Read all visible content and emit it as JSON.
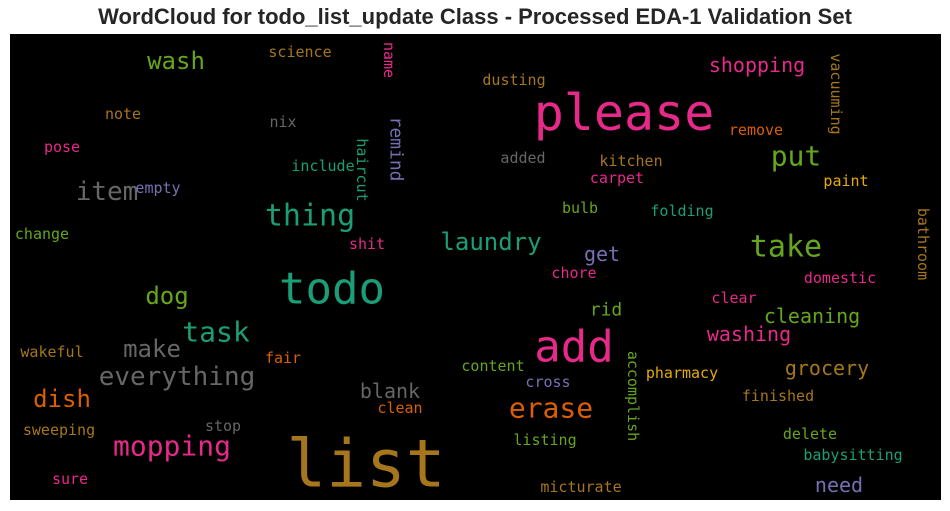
{
  "chart_data": {
    "type": "wordcloud",
    "title": "WordCloud for todo_list_update Class - Processed EDA-1 Validation Set",
    "background": "#000000",
    "words": [
      {
        "text": "list",
        "color": "#a6761d"
      },
      {
        "text": "please",
        "color": "#e7298a"
      },
      {
        "text": "todo",
        "color": "#1b9e77"
      },
      {
        "text": "add",
        "color": "#e7298a"
      },
      {
        "text": "take",
        "color": "#66a61e"
      },
      {
        "text": "thing",
        "color": "#1b9e77"
      },
      {
        "text": "task",
        "color": "#1b9e77"
      },
      {
        "text": "erase",
        "color": "#d95f02"
      },
      {
        "text": "mopping",
        "color": "#e7298a"
      },
      {
        "text": "put",
        "color": "#66a61e"
      },
      {
        "text": "everything",
        "color": "#666666"
      },
      {
        "text": "item",
        "color": "#666666"
      },
      {
        "text": "make",
        "color": "#666666"
      },
      {
        "text": "laundry",
        "color": "#1b9e77"
      },
      {
        "text": "wash",
        "color": "#66a61e"
      },
      {
        "text": "dog",
        "color": "#66a61e"
      },
      {
        "text": "dish",
        "color": "#d95f02"
      },
      {
        "text": "shopping",
        "color": "#e7298a"
      },
      {
        "text": "washing",
        "color": "#e7298a"
      },
      {
        "text": "cleaning",
        "color": "#66a61e"
      },
      {
        "text": "grocery",
        "color": "#a6761d"
      },
      {
        "text": "blank",
        "color": "#666666"
      },
      {
        "text": "get",
        "color": "#7570b3"
      },
      {
        "text": "need",
        "color": "#7570b3"
      },
      {
        "text": "rid",
        "color": "#66a61e"
      },
      {
        "text": "remind",
        "color": "#7570b3"
      },
      {
        "text": "vacuuming",
        "color": "#a6761d"
      },
      {
        "text": "accomplish",
        "color": "#66a61e"
      },
      {
        "text": "bathroom",
        "color": "#a6761d"
      },
      {
        "text": "haircut",
        "color": "#1b9e77"
      },
      {
        "text": "name",
        "color": "#e7298a"
      },
      {
        "text": "science",
        "color": "#a6761d"
      },
      {
        "text": "dusting",
        "color": "#a6761d"
      },
      {
        "text": "note",
        "color": "#a6761d"
      },
      {
        "text": "nix",
        "color": "#666666"
      },
      {
        "text": "remove",
        "color": "#d95f02"
      },
      {
        "text": "pose",
        "color": "#e7298a"
      },
      {
        "text": "include",
        "color": "#1b9e77"
      },
      {
        "text": "added",
        "color": "#666666"
      },
      {
        "text": "kitchen",
        "color": "#a6761d"
      },
      {
        "text": "empty",
        "color": "#7570b3"
      },
      {
        "text": "carpet",
        "color": "#e7298a"
      },
      {
        "text": "paint",
        "color": "#e6ab02"
      },
      {
        "text": "bulb",
        "color": "#66a61e"
      },
      {
        "text": "folding",
        "color": "#1b9e77"
      },
      {
        "text": "change",
        "color": "#66a61e"
      },
      {
        "text": "shit",
        "color": "#e7298a"
      },
      {
        "text": "chore",
        "color": "#e7298a"
      },
      {
        "text": "domestic",
        "color": "#e7298a"
      },
      {
        "text": "clear",
        "color": "#e7298a"
      },
      {
        "text": "wakeful",
        "color": "#a6761d"
      },
      {
        "text": "fair",
        "color": "#d95f02"
      },
      {
        "text": "content",
        "color": "#66a61e"
      },
      {
        "text": "pharmacy",
        "color": "#e6ab02"
      },
      {
        "text": "cross",
        "color": "#7570b3"
      },
      {
        "text": "finished",
        "color": "#a6761d"
      },
      {
        "text": "clean",
        "color": "#d95f02"
      },
      {
        "text": "stop",
        "color": "#666666"
      },
      {
        "text": "sweeping",
        "color": "#a6761d"
      },
      {
        "text": "listing",
        "color": "#66a61e"
      },
      {
        "text": "delete",
        "color": "#66a61e"
      },
      {
        "text": "babysitting",
        "color": "#1b9e77"
      },
      {
        "text": "sure",
        "color": "#e7298a"
      },
      {
        "text": "micturate",
        "color": "#a6761d"
      }
    ]
  }
}
